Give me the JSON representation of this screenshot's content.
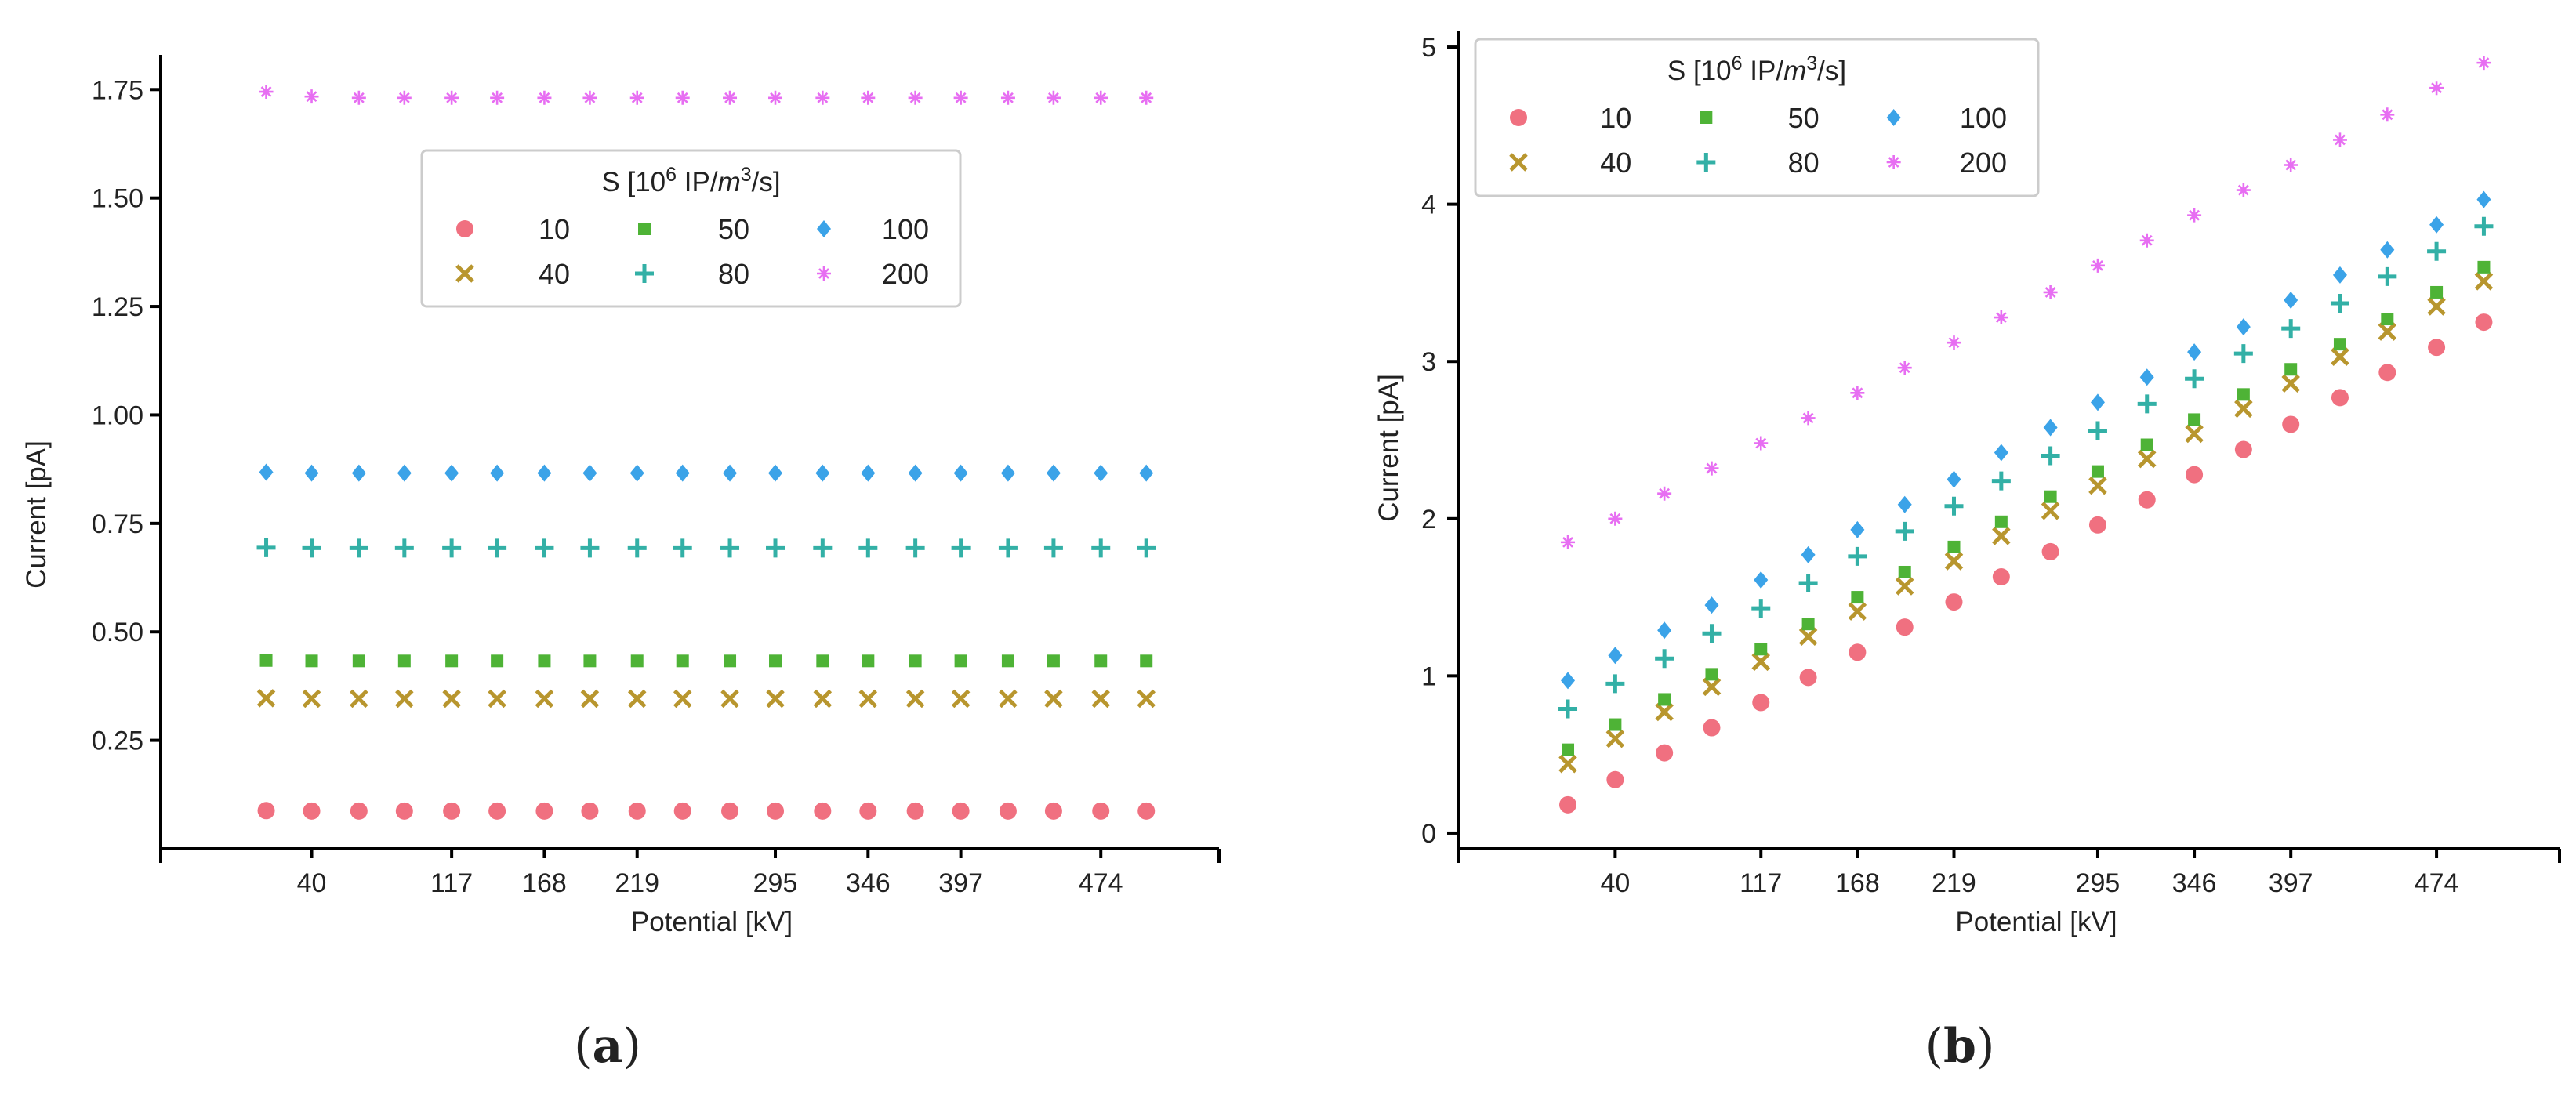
{
  "chart_data": [
    {
      "id": "a",
      "type": "scatter",
      "panel_label": "(a)",
      "xlabel": "Potential [kV]",
      "ylabel": "Current [pA]",
      "x": [
        15,
        40,
        66,
        91,
        117,
        142,
        168,
        193,
        219,
        244,
        270,
        295,
        321,
        346,
        372,
        397,
        423,
        448,
        474,
        499
      ],
      "xticks": [
        40,
        117,
        168,
        219,
        295,
        346,
        397,
        474
      ],
      "xlim": [
        -43,
        539
      ],
      "ylim": [
        0.0,
        1.83
      ],
      "yticks": [
        0.25,
        0.5,
        0.75,
        1.0,
        1.25,
        1.5,
        1.75
      ],
      "ytick_labels": [
        "0.25",
        "0.50",
        "0.75",
        "1.00",
        "1.25",
        "1.50",
        "1.75"
      ],
      "legend": {
        "title": "S [10^6 IP/m^3/s]",
        "position": "upper-center",
        "ncol": 3
      },
      "series": [
        {
          "name": "10",
          "marker": "circle",
          "color": "#f07080",
          "values": [
            0.088,
            0.087,
            0.087,
            0.087,
            0.087,
            0.087,
            0.087,
            0.087,
            0.087,
            0.087,
            0.087,
            0.087,
            0.087,
            0.087,
            0.087,
            0.087,
            0.087,
            0.087,
            0.087,
            0.087
          ]
        },
        {
          "name": "40",
          "marker": "x",
          "color": "#b8962e",
          "values": [
            0.347,
            0.346,
            0.346,
            0.346,
            0.346,
            0.346,
            0.346,
            0.346,
            0.346,
            0.346,
            0.346,
            0.346,
            0.346,
            0.346,
            0.346,
            0.346,
            0.346,
            0.346,
            0.346,
            0.346
          ]
        },
        {
          "name": "50",
          "marker": "square",
          "color": "#4eb336",
          "values": [
            0.434,
            0.433,
            0.433,
            0.433,
            0.433,
            0.433,
            0.433,
            0.433,
            0.433,
            0.433,
            0.433,
            0.433,
            0.433,
            0.433,
            0.433,
            0.433,
            0.433,
            0.433,
            0.433,
            0.433
          ]
        },
        {
          "name": "80",
          "marker": "plus",
          "color": "#33b0a6",
          "values": [
            0.694,
            0.693,
            0.693,
            0.693,
            0.693,
            0.693,
            0.693,
            0.693,
            0.693,
            0.693,
            0.693,
            0.693,
            0.693,
            0.693,
            0.693,
            0.693,
            0.693,
            0.693,
            0.693,
            0.693
          ]
        },
        {
          "name": "100",
          "marker": "diamond",
          "color": "#3ba3e8",
          "values": [
            0.868,
            0.866,
            0.866,
            0.866,
            0.866,
            0.866,
            0.866,
            0.866,
            0.866,
            0.866,
            0.866,
            0.866,
            0.866,
            0.866,
            0.866,
            0.866,
            0.866,
            0.866,
            0.866,
            0.866
          ]
        },
        {
          "name": "200",
          "marker": "star",
          "color": "#e76ef2",
          "values": [
            1.745,
            1.734,
            1.731,
            1.731,
            1.731,
            1.731,
            1.731,
            1.731,
            1.731,
            1.731,
            1.731,
            1.731,
            1.731,
            1.731,
            1.731,
            1.731,
            1.731,
            1.731,
            1.731,
            1.731
          ]
        }
      ]
    },
    {
      "id": "b",
      "type": "scatter",
      "panel_label": "(b)",
      "xlabel": "Potential [kV]",
      "ylabel": "Current [pA]",
      "x": [
        15,
        40,
        66,
        91,
        117,
        142,
        168,
        193,
        219,
        244,
        270,
        295,
        321,
        346,
        372,
        397,
        423,
        448,
        474,
        499
      ],
      "xticks": [
        40,
        117,
        168,
        219,
        295,
        346,
        397,
        474
      ],
      "xlim": [
        -43,
        539
      ],
      "ylim": [
        -0.1,
        5.1
      ],
      "yticks": [
        0,
        1,
        2,
        3,
        4,
        5
      ],
      "ytick_labels": [
        "0",
        "1",
        "2",
        "3",
        "4",
        "5"
      ],
      "legend": {
        "title": "S [10^6 IP/m^3/s]",
        "position": "upper-left",
        "ncol": 3
      },
      "series": [
        {
          "name": "10",
          "marker": "circle",
          "color": "#f07080",
          "values": [
            0.18,
            0.34,
            0.51,
            0.67,
            0.83,
            0.99,
            1.15,
            1.31,
            1.47,
            1.63,
            1.79,
            1.96,
            2.12,
            2.28,
            2.44,
            2.6,
            2.77,
            2.93,
            3.09,
            3.25
          ]
        },
        {
          "name": "40",
          "marker": "x",
          "color": "#b8962e",
          "values": [
            0.44,
            0.6,
            0.77,
            0.93,
            1.09,
            1.25,
            1.41,
            1.57,
            1.73,
            1.89,
            2.05,
            2.21,
            2.38,
            2.54,
            2.7,
            2.86,
            3.03,
            3.19,
            3.35,
            3.51
          ]
        },
        {
          "name": "50",
          "marker": "square",
          "color": "#4eb336",
          "values": [
            0.53,
            0.69,
            0.85,
            1.01,
            1.17,
            1.33,
            1.5,
            1.66,
            1.82,
            1.98,
            2.14,
            2.3,
            2.47,
            2.63,
            2.79,
            2.95,
            3.11,
            3.27,
            3.44,
            3.6
          ]
        },
        {
          "name": "80",
          "marker": "plus",
          "color": "#33b0a6",
          "values": [
            0.79,
            0.95,
            1.11,
            1.27,
            1.43,
            1.59,
            1.76,
            1.92,
            2.08,
            2.24,
            2.4,
            2.56,
            2.73,
            2.89,
            3.05,
            3.21,
            3.37,
            3.54,
            3.7,
            3.86
          ]
        },
        {
          "name": "100",
          "marker": "diamond",
          "color": "#3ba3e8",
          "values": [
            0.97,
            1.13,
            1.29,
            1.45,
            1.61,
            1.77,
            1.93,
            2.09,
            2.25,
            2.42,
            2.58,
            2.74,
            2.9,
            3.06,
            3.22,
            3.39,
            3.55,
            3.71,
            3.87,
            4.03
          ]
        },
        {
          "name": "200",
          "marker": "star",
          "color": "#e76ef2",
          "values": [
            1.85,
            2.0,
            2.16,
            2.32,
            2.48,
            2.64,
            2.8,
            2.96,
            3.12,
            3.28,
            3.44,
            3.61,
            3.77,
            3.93,
            4.09,
            4.25,
            4.41,
            4.57,
            4.74,
            4.9
          ]
        }
      ]
    }
  ]
}
